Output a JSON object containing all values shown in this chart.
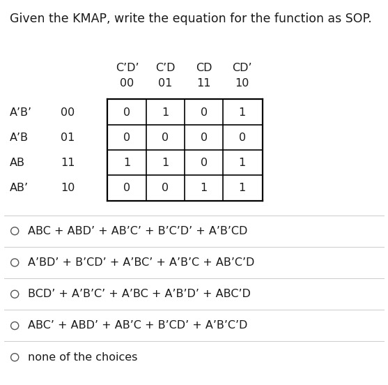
{
  "title": "Given the KMAP, write the equation for the function as SOP.",
  "col_headers": [
    "C’D’",
    "C’D",
    "CD",
    "CD’"
  ],
  "col_codes": [
    "00",
    "01",
    "11",
    "10"
  ],
  "row_headers": [
    "A’B’",
    "A’B",
    "AB",
    "AB’"
  ],
  "row_codes": [
    "00",
    "01",
    "11",
    "10"
  ],
  "kmap_values": [
    [
      0,
      1,
      0,
      1
    ],
    [
      0,
      0,
      0,
      0
    ],
    [
      1,
      1,
      0,
      1
    ],
    [
      0,
      0,
      1,
      1
    ]
  ],
  "choices": [
    "ABC + ABD’ + AB’C’ + B’C’D’ + A’B’CD",
    "A’BD’ + B’CD’ + A’BC’ + A’B’C + AB’C’D",
    "BCD’ + A’B’C’ + A’BC + A’B’D’ + ABC’D",
    "ABC’ + ABD’ + AB’C + B’CD’ + A’B’C’D",
    "none of the choices"
  ],
  "bg_color": "#ffffff",
  "text_color": "#1a1a1a",
  "choice_text_color": "#2c4a7c",
  "title_fontsize": 12.5,
  "body_fontsize": 11.5,
  "choice_fontsize": 11.5,
  "sep_color": "#cccccc"
}
